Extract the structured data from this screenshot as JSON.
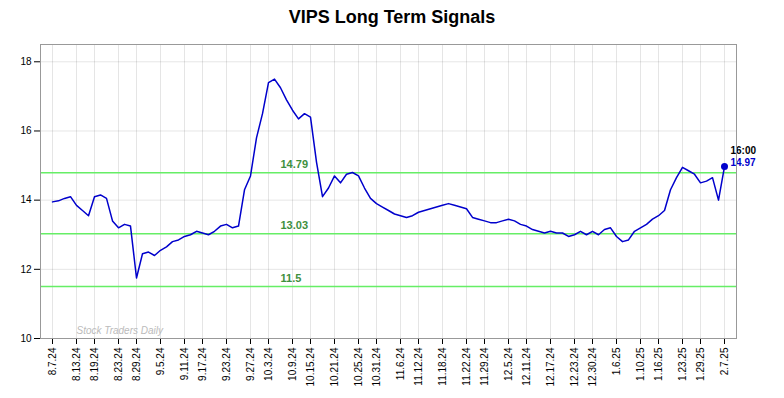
{
  "chart_data": {
    "type": "line",
    "title": "VIPS Long Term Signals",
    "categories": [
      "8.7.24",
      null,
      null,
      null,
      "8.13.24",
      null,
      null,
      "8.19.24",
      null,
      null,
      null,
      "8.23.24",
      null,
      null,
      "8.29.24",
      null,
      null,
      null,
      "9.5.24",
      null,
      null,
      null,
      "9.11.24",
      null,
      null,
      "9.17.24",
      null,
      null,
      null,
      "9.23.24",
      null,
      null,
      null,
      "9.27.24",
      null,
      null,
      "10.3.24",
      null,
      null,
      null,
      "10.9.24",
      null,
      null,
      "10.15.24",
      null,
      null,
      null,
      "10.21.24",
      null,
      null,
      null,
      "10.25.24",
      null,
      null,
      "10.31.24",
      null,
      null,
      null,
      "11.6.24",
      null,
      null,
      "11.12.24",
      null,
      null,
      null,
      "11.18.24",
      null,
      null,
      null,
      "11.22.24",
      null,
      null,
      "11.29.24",
      null,
      null,
      null,
      "12.5.24",
      null,
      null,
      "12.11.24",
      null,
      null,
      null,
      "12.17.24",
      null,
      null,
      null,
      "12.23.24",
      null,
      null,
      "12.30.24",
      null,
      null,
      null,
      "1.6.25",
      null,
      null,
      null,
      "1.10.25",
      null,
      null,
      "1.16.25",
      null,
      null,
      null,
      "1.23.25",
      null,
      null,
      "1.29.25",
      null,
      null,
      null,
      "2.7.25"
    ],
    "values": [
      13.95,
      13.98,
      14.05,
      14.1,
      13.85,
      13.7,
      13.55,
      14.1,
      14.15,
      14.05,
      13.4,
      13.2,
      13.3,
      13.25,
      11.75,
      12.45,
      12.5,
      12.4,
      12.55,
      12.65,
      12.8,
      12.85,
      12.95,
      13.0,
      13.1,
      13.05,
      13.0,
      13.1,
      13.25,
      13.3,
      13.2,
      13.25,
      14.3,
      14.7,
      15.8,
      16.5,
      17.4,
      17.5,
      17.25,
      16.9,
      16.6,
      16.35,
      16.5,
      16.4,
      15.1,
      14.1,
      14.35,
      14.7,
      14.5,
      14.75,
      14.8,
      14.7,
      14.35,
      14.05,
      13.9,
      13.8,
      13.7,
      13.6,
      13.55,
      13.5,
      13.55,
      13.65,
      13.7,
      13.75,
      13.8,
      13.85,
      13.9,
      13.85,
      13.8,
      13.75,
      13.5,
      13.45,
      13.4,
      13.35,
      13.35,
      13.4,
      13.45,
      13.4,
      13.3,
      13.25,
      13.15,
      13.1,
      13.05,
      13.1,
      13.05,
      13.05,
      12.95,
      13.0,
      13.1,
      13.0,
      13.1,
      13.0,
      13.15,
      13.2,
      12.95,
      12.8,
      12.85,
      13.1,
      13.2,
      13.3,
      13.45,
      13.55,
      13.7,
      14.3,
      14.65,
      14.95,
      14.85,
      14.75,
      14.5,
      14.55,
      14.65,
      14.0,
      14.97
    ],
    "color": "#0000cc",
    "ylim": [
      10,
      18.5
    ],
    "yticks": [
      10,
      12,
      14,
      16,
      18
    ],
    "grid": true,
    "hlines": [
      {
        "y": 14.79,
        "label": "14.79",
        "color": "#66ee66"
      },
      {
        "y": 13.03,
        "label": "13.03",
        "color": "#66ee66"
      },
      {
        "y": 11.5,
        "label": "11.5",
        "color": "#66ee66"
      }
    ],
    "annotations": [
      {
        "text": "Stock Traders Daily",
        "color": "#bbbbbb"
      }
    ],
    "end_labels": [
      "16:00",
      "14.97"
    ]
  }
}
